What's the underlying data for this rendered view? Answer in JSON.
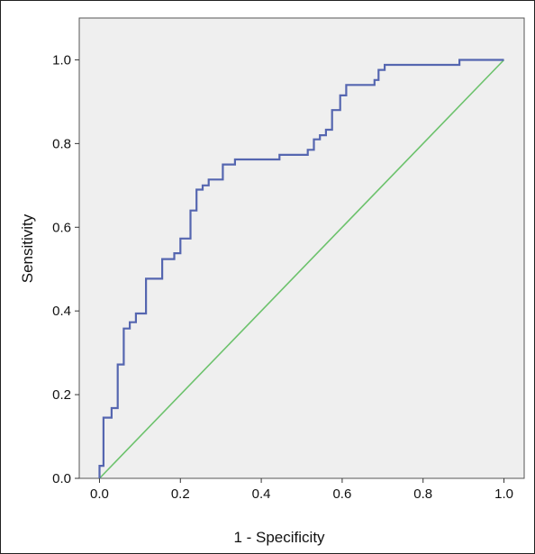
{
  "chart_data": {
    "type": "line",
    "title": "",
    "xlabel": "1 - Specificity",
    "ylabel": "Sensitivity",
    "xlim": [
      -0.05,
      1.05
    ],
    "ylim": [
      0.0,
      1.1
    ],
    "xticks": [
      0.0,
      0.2,
      0.4,
      0.6,
      0.8,
      1.0
    ],
    "yticks": [
      0.0,
      0.2,
      0.4,
      0.6,
      0.8,
      1.0
    ],
    "xtick_labels": [
      "0.0",
      "0.2",
      "0.4",
      "0.6",
      "0.8",
      "1.0"
    ],
    "ytick_labels": [
      "0.0",
      "0.2",
      "0.4",
      "0.6",
      "0.8",
      "1.0"
    ],
    "grid": false,
    "plot_background": "#efefef",
    "series": [
      {
        "color": "#5566b0",
        "style": "step",
        "x": [
          0.0,
          0.0,
          0.01,
          0.01,
          0.03,
          0.03,
          0.045,
          0.045,
          0.06,
          0.06,
          0.075,
          0.075,
          0.09,
          0.09,
          0.115,
          0.115,
          0.155,
          0.155,
          0.185,
          0.185,
          0.2,
          0.2,
          0.225,
          0.225,
          0.24,
          0.24,
          0.255,
          0.255,
          0.27,
          0.27,
          0.305,
          0.305,
          0.335,
          0.335,
          0.445,
          0.445,
          0.515,
          0.515,
          0.53,
          0.53,
          0.545,
          0.545,
          0.56,
          0.56,
          0.575,
          0.575,
          0.595,
          0.595,
          0.61,
          0.61,
          0.68,
          0.68,
          0.69,
          0.69,
          0.705,
          0.705,
          0.89,
          0.89,
          1.0
        ],
        "y": [
          0.0,
          0.03,
          0.03,
          0.145,
          0.145,
          0.168,
          0.168,
          0.272,
          0.272,
          0.358,
          0.358,
          0.373,
          0.373,
          0.394,
          0.394,
          0.477,
          0.477,
          0.524,
          0.524,
          0.538,
          0.538,
          0.573,
          0.573,
          0.64,
          0.64,
          0.69,
          0.69,
          0.7,
          0.7,
          0.714,
          0.714,
          0.75,
          0.75,
          0.762,
          0.762,
          0.773,
          0.773,
          0.785,
          0.785,
          0.81,
          0.81,
          0.82,
          0.82,
          0.833,
          0.833,
          0.88,
          0.88,
          0.915,
          0.915,
          0.94,
          0.94,
          0.952,
          0.952,
          0.976,
          0.976,
          0.988,
          0.988,
          1.0,
          1.0
        ]
      },
      {
        "color": "#6cc26c",
        "style": "diagonal",
        "x": [
          0.0,
          1.0
        ],
        "y": [
          0.0,
          1.0
        ]
      }
    ]
  }
}
